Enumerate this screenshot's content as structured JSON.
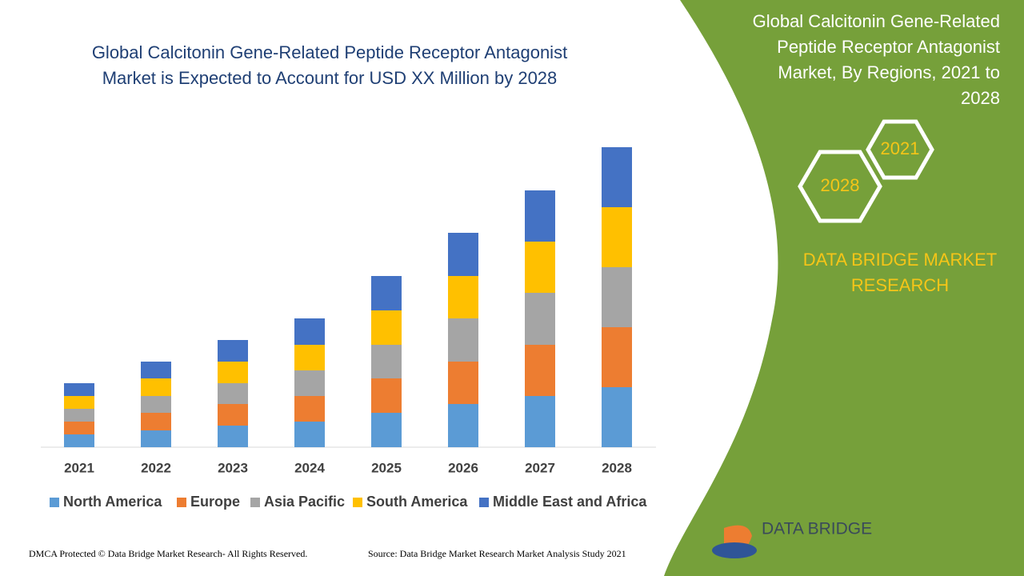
{
  "chart_data": {
    "type": "bar",
    "stacked": true,
    "title_lines": [
      "Global Calcitonin Gene-Related Peptide Receptor Antagonist",
      "Market is Expected to Account for USD XX Million by 2028"
    ],
    "categories": [
      "2021",
      "2022",
      "2023",
      "2024",
      "2025",
      "2026",
      "2027",
      "2028"
    ],
    "series": [
      {
        "name": "North America",
        "color": "#5b9bd5",
        "values": [
          16,
          21,
          27,
          32,
          43,
          54,
          64,
          75
        ]
      },
      {
        "name": "Europe",
        "color": "#ed7d31",
        "values": [
          16,
          22,
          27,
          32,
          43,
          53,
          64,
          75
        ]
      },
      {
        "name": "Asia Pacific",
        "color": "#a5a5a5",
        "values": [
          16,
          21,
          26,
          32,
          42,
          54,
          65,
          75
        ]
      },
      {
        "name": "South America",
        "color": "#ffc000",
        "values": [
          16,
          22,
          27,
          32,
          43,
          53,
          64,
          75
        ]
      },
      {
        "name": "Middle East and Africa",
        "color": "#4472c4",
        "values": [
          16,
          21,
          27,
          33,
          43,
          54,
          64,
          75
        ]
      }
    ]
  },
  "panel": {
    "title_lines": [
      "Global Calcitonin Gene-Related",
      "Peptide Receptor Antagonist",
      "Market, By Regions, 2021 to",
      "2028"
    ],
    "hex_labels": [
      "2021",
      "2028"
    ],
    "brand_lines": [
      "DATA BRIDGE MARKET",
      "RESEARCH"
    ],
    "logo": "DATA BRIDGE"
  },
  "footer": {
    "dmca": "DMCA Protected © Data Bridge Market Research- All Rights Reserved.",
    "source": "Source: Data Bridge Market Research Market Analysis Study 2021"
  }
}
